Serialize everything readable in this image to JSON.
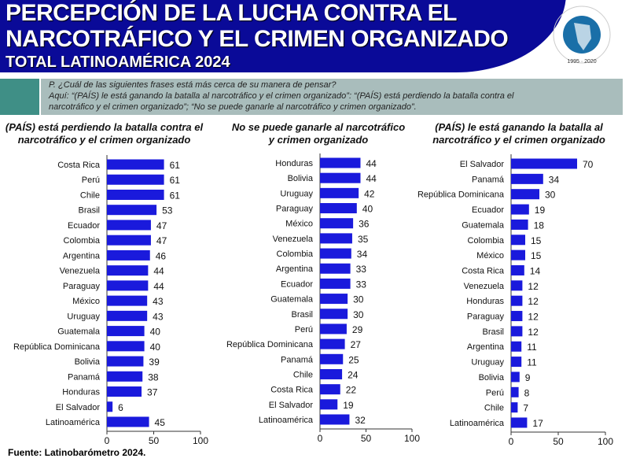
{
  "header": {
    "title_line1": "PERCEPCIÓN DE LA LUCHA CONTRA EL",
    "title_line2": "NARCOTRÁFICO Y EL CRIMEN ORGANIZADO",
    "subtitle": "TOTAL LATINOAMÉRICA 2024",
    "logo_text": "LATINOBARÓMETRO 1995 · 2020 MR"
  },
  "question": {
    "line1": "P. ¿Cuál de las siguientes frases está más cerca de su manera de pensar?",
    "line2": "Aquí: “(PAÍS) le está ganando la batalla al narcotráfico y el crimen organizado”: “(PAÍS) está perdiendo la batalla contra el",
    "line3": "narcotráfico y el crimen organizado”; “No se puede ganarle al narcotráfico y crimen organizado”."
  },
  "source": "Fuente: Latinobarómetro 2024.",
  "colors": {
    "bar": "#1a1adc",
    "header": "#0a0a98",
    "teal": "#3f8f86",
    "question_bg": "#a9bdbc"
  },
  "chart_data": [
    {
      "type": "bar",
      "orientation": "horizontal",
      "title": "(PAÍS) está perdiendo la batalla contra el narcotráfico y el crimen organizado",
      "xlim": [
        0,
        100
      ],
      "ticks": [
        0,
        50,
        100
      ],
      "categories": [
        "Costa Rica",
        "Perú",
        "Chile",
        "Brasil",
        "Ecuador",
        "Colombia",
        "Argentina",
        "Venezuela",
        "Paraguay",
        "México",
        "Uruguay",
        "Guatemala",
        "República Dominicana",
        "Bolivia",
        "Panamá",
        "Honduras",
        "El Salvador",
        "Latinoamérica"
      ],
      "values": [
        61,
        61,
        61,
        53,
        47,
        47,
        46,
        44,
        44,
        43,
        43,
        40,
        40,
        39,
        38,
        37,
        6,
        45
      ]
    },
    {
      "type": "bar",
      "orientation": "horizontal",
      "title": "No se puede ganarle al narcotráfico y crimen organizado",
      "xlim": [
        0,
        100
      ],
      "ticks": [
        0,
        50,
        100
      ],
      "categories": [
        "Honduras",
        "Bolivia",
        "Uruguay",
        "Paraguay",
        "México",
        "Venezuela",
        "Colombia",
        "Argentina",
        "Ecuador",
        "Guatemala",
        "Brasil",
        "Perú",
        "República Dominicana",
        "Panamá",
        "Chile",
        "Costa Rica",
        "El Salvador",
        "Latinoamérica"
      ],
      "values": [
        44,
        44,
        42,
        40,
        36,
        35,
        34,
        33,
        33,
        30,
        30,
        29,
        27,
        25,
        24,
        22,
        19,
        32
      ]
    },
    {
      "type": "bar",
      "orientation": "horizontal",
      "title": "(PAÍS) le está ganando la batalla al narcotráfico y el crimen organizado",
      "xlim": [
        0,
        100
      ],
      "ticks": [
        0,
        50,
        100
      ],
      "categories": [
        "El Salvador",
        "Panamá",
        "República Dominicana",
        "Ecuador",
        "Guatemala",
        "Colombia",
        "México",
        "Costa Rica",
        "Venezuela",
        "Honduras",
        "Paraguay",
        "Brasil",
        "Argentina",
        "Uruguay",
        "Bolivia",
        "Perú",
        "Chile",
        "Latinoamérica"
      ],
      "values": [
        70,
        34,
        30,
        19,
        18,
        15,
        15,
        14,
        12,
        12,
        12,
        12,
        11,
        11,
        9,
        8,
        7,
        17
      ]
    }
  ]
}
